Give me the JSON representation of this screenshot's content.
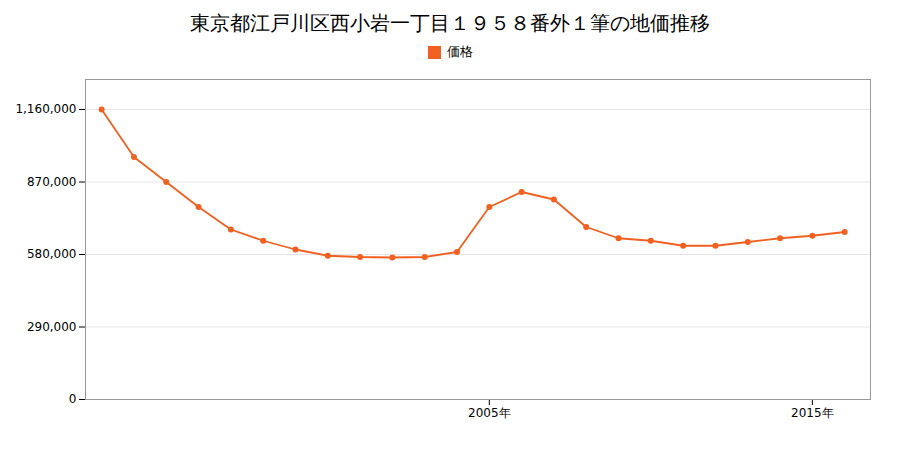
{
  "chart_data": {
    "type": "line",
    "title": "東京都江戸川区西小岩一丁目１９５８番外１筆の地価推移",
    "x": [
      1993,
      1994,
      1995,
      1996,
      1997,
      1998,
      1999,
      2000,
      2001,
      2002,
      2003,
      2004,
      2005,
      2006,
      2007,
      2008,
      2009,
      2010,
      2011,
      2012,
      2013,
      2014,
      2015,
      2016
    ],
    "series": [
      {
        "name": "価格",
        "color": "#f06020",
        "marker": "circle",
        "values": [
          1160000,
          970000,
          870000,
          770000,
          680000,
          635000,
          600000,
          575000,
          570000,
          568000,
          570000,
          590000,
          770000,
          830000,
          800000,
          690000,
          645000,
          635000,
          615000,
          615000,
          630000,
          645000,
          655000,
          670000
        ]
      }
    ],
    "xlim": [
      1992.5,
      2016.8
    ],
    "xticks": [
      {
        "value": 2005,
        "label": "2005年"
      },
      {
        "value": 2015,
        "label": "2015年"
      }
    ],
    "ylim": [
      0,
      1280000
    ],
    "yticks": [
      0,
      {
        "value": 290000,
        "label": "290,000"
      },
      {
        "value": 580000,
        "label": "580,000"
      },
      {
        "value": 870000,
        "label": "870,000"
      },
      {
        "value": 1160000,
        "label": "1,160,000"
      }
    ],
    "grid": true,
    "legend": "top"
  }
}
